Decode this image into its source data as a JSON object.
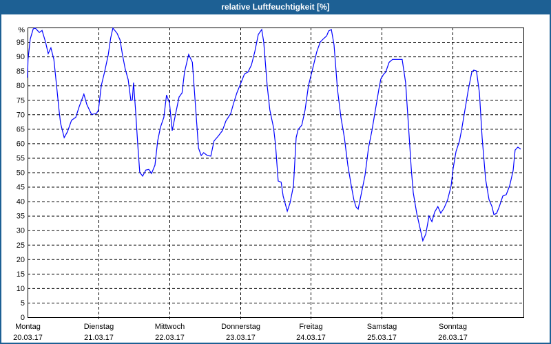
{
  "title": "relative Luftfeuchtigkeit [%]",
  "chart_data": {
    "type": "line",
    "title": "relative Luftfeuchtigkeit [%]",
    "ylabel": "%",
    "ylim": [
      0,
      100
    ],
    "yticks": [
      0,
      5,
      10,
      15,
      20,
      25,
      30,
      35,
      40,
      45,
      50,
      55,
      60,
      65,
      70,
      75,
      80,
      85,
      90,
      95
    ],
    "grid": true,
    "line_color": "#0000ff",
    "x_ticks": [
      {
        "day": "Montag",
        "date": "20.03.17"
      },
      {
        "day": "Dienstag",
        "date": "21.03.17"
      },
      {
        "day": "Mittwoch",
        "date": "22.03.17"
      },
      {
        "day": "Donnerstag",
        "date": "23.03.17"
      },
      {
        "day": "Freitag",
        "date": "24.03.17"
      },
      {
        "day": "Samstag",
        "date": "25.03.17"
      },
      {
        "day": "Sonntag",
        "date": "26.03.17"
      }
    ],
    "series": [
      {
        "points": {
          "20.03.17": [
            [
              "00:00",
              82.7
            ],
            [
              "00:10",
              89
            ],
            [
              "00:55",
              96
            ],
            [
              "01:55",
              99.5
            ],
            [
              "02:35",
              99.8
            ],
            [
              "04:00",
              98.3
            ],
            [
              "04:55",
              99
            ],
            [
              "06:05",
              95
            ],
            [
              "07:00",
              91
            ],
            [
              "07:55",
              93
            ],
            [
              "08:55",
              89
            ],
            [
              "09:50",
              80
            ],
            [
              "10:40",
              71.5
            ],
            [
              "11:10",
              67
            ],
            [
              "12:25",
              62
            ],
            [
              "13:30",
              64
            ],
            [
              "14:55",
              68
            ],
            [
              "16:20",
              69
            ],
            [
              "17:30",
              72.7
            ],
            [
              "19:05",
              77
            ],
            [
              "20:05",
              73.4
            ],
            [
              "21:40",
              70
            ],
            [
              "23:20",
              70.3
            ]
          ],
          "21.03.17": [
            [
              "00:00",
              71.5
            ],
            [
              "01:00",
              80
            ],
            [
              "02:05",
              84.6
            ],
            [
              "03:20",
              90.5
            ],
            [
              "04:10",
              96.4
            ],
            [
              "04:55",
              99.8
            ],
            [
              "06:20",
              98
            ],
            [
              "07:20",
              95.7
            ],
            [
              "08:10",
              90.5
            ],
            [
              "09:05",
              85.7
            ],
            [
              "10:05",
              82
            ],
            [
              "11:00",
              74.8
            ],
            [
              "11:30",
              75
            ],
            [
              "11:55",
              81
            ],
            [
              "12:35",
              71.5
            ],
            [
              "13:20",
              59.6
            ],
            [
              "14:00",
              50
            ],
            [
              "15:00",
              48.7
            ],
            [
              "16:05",
              50.8
            ],
            [
              "17:05",
              51
            ],
            [
              "18:00",
              49.6
            ],
            [
              "19:10",
              52.5
            ],
            [
              "20:05",
              60.8
            ],
            [
              "21:00",
              65.5
            ],
            [
              "22:10",
              69
            ],
            [
              "23:05",
              76.7
            ]
          ],
          "22.03.17": [
            [
              "00:05",
              74
            ],
            [
              "01:00",
              64.4
            ],
            [
              "02:25",
              71.5
            ],
            [
              "03:20",
              76
            ],
            [
              "04:20",
              77.4
            ],
            [
              "05:10",
              84.6
            ],
            [
              "06:35",
              90.7
            ],
            [
              "07:50",
              88
            ],
            [
              "08:40",
              76
            ],
            [
              "09:55",
              58.4
            ],
            [
              "10:50",
              55.8
            ],
            [
              "11:40",
              56.8
            ],
            [
              "12:55",
              55.8
            ],
            [
              "14:05",
              55.6
            ],
            [
              "15:10",
              60.8
            ],
            [
              "16:35",
              62.5
            ],
            [
              "18:00",
              64.4
            ],
            [
              "19:10",
              67.7
            ],
            [
              "20:50",
              70.3
            ],
            [
              "21:50",
              74
            ],
            [
              "22:55",
              77.4
            ]
          ],
          "23.03.17": [
            [
              "00:20",
              81
            ],
            [
              "01:30",
              84
            ],
            [
              "02:40",
              84.6
            ],
            [
              "03:50",
              87
            ],
            [
              "05:00",
              91.7
            ],
            [
              "06:10",
              97.6
            ],
            [
              "07:20",
              99.3
            ],
            [
              "08:00",
              95
            ],
            [
              "09:10",
              80
            ],
            [
              "10:05",
              71.5
            ],
            [
              "11:20",
              65.5
            ],
            [
              "12:00",
              59.6
            ],
            [
              "12:55",
              47
            ],
            [
              "13:55",
              46.6
            ],
            [
              "14:35",
              41.8
            ],
            [
              "16:00",
              36.6
            ],
            [
              "16:55",
              39.4
            ],
            [
              "18:05",
              45.4
            ],
            [
              "19:00",
              62
            ],
            [
              "19:40",
              64.8
            ],
            [
              "20:55",
              66.3
            ],
            [
              "22:00",
              71.5
            ],
            [
              "23:10",
              80
            ]
          ],
          "24.03.17": [
            [
              "00:35",
              85.7
            ],
            [
              "02:00",
              91.7
            ],
            [
              "03:10",
              95
            ],
            [
              "04:20",
              96.2
            ],
            [
              "05:20",
              97.1
            ],
            [
              "06:00",
              98.8
            ],
            [
              "06:55",
              99.3
            ],
            [
              "07:50",
              94
            ],
            [
              "09:00",
              78.6
            ],
            [
              "10:10",
              69
            ],
            [
              "11:20",
              62
            ],
            [
              "12:30",
              52.5
            ],
            [
              "13:40",
              45.4
            ],
            [
              "14:35",
              40.4
            ],
            [
              "15:20",
              38
            ],
            [
              "16:00",
              37.3
            ],
            [
              "16:55",
              41.8
            ],
            [
              "18:20",
              49
            ],
            [
              "19:30",
              58.4
            ],
            [
              "20:40",
              64.4
            ],
            [
              "21:50",
              71.5
            ],
            [
              "23:00",
              78.6
            ],
            [
              "23:40",
              82.2
            ]
          ],
          "25.03.17": [
            [
              "00:35",
              83.8
            ],
            [
              "01:20",
              84.6
            ],
            [
              "02:30",
              88
            ],
            [
              "03:40",
              89
            ],
            [
              "04:50",
              89
            ],
            [
              "06:55",
              89
            ],
            [
              "08:05",
              81
            ],
            [
              "09:00",
              66.7
            ],
            [
              "10:00",
              51.3
            ],
            [
              "10:40",
              43
            ],
            [
              "11:50",
              35.9
            ],
            [
              "13:00",
              30.6
            ],
            [
              "13:55",
              26.4
            ],
            [
              "14:55",
              28.7
            ],
            [
              "16:00",
              34.9
            ],
            [
              "17:00",
              33
            ],
            [
              "17:55",
              36.3
            ],
            [
              "19:00",
              38.2
            ],
            [
              "20:00",
              35.9
            ],
            [
              "21:10",
              37.8
            ],
            [
              "22:20",
              40.6
            ],
            [
              "23:30",
              45.4
            ]
          ],
          "26.03.17": [
            [
              "00:10",
              51.3
            ],
            [
              "01:10",
              57.2
            ],
            [
              "02:20",
              60.8
            ],
            [
              "03:00",
              64.4
            ],
            [
              "04:10",
              71.5
            ],
            [
              "05:20",
              78.6
            ],
            [
              "06:30",
              84.6
            ],
            [
              "07:10",
              85.3
            ],
            [
              "08:05",
              85
            ],
            [
              "09:05",
              77.4
            ],
            [
              "10:00",
              62
            ],
            [
              "11:10",
              47.7
            ],
            [
              "12:20",
              40.6
            ],
            [
              "13:20",
              38.2
            ],
            [
              "14:00",
              35.4
            ],
            [
              "14:55",
              35.9
            ],
            [
              "15:50",
              38.2
            ],
            [
              "17:00",
              41.8
            ],
            [
              "18:10",
              42.3
            ],
            [
              "19:20",
              45.4
            ],
            [
              "20:30",
              50.6
            ],
            [
              "21:10",
              57.7
            ],
            [
              "22:05",
              58.7
            ],
            [
              "23:05",
              58
            ]
          ]
        }
      }
    ]
  }
}
